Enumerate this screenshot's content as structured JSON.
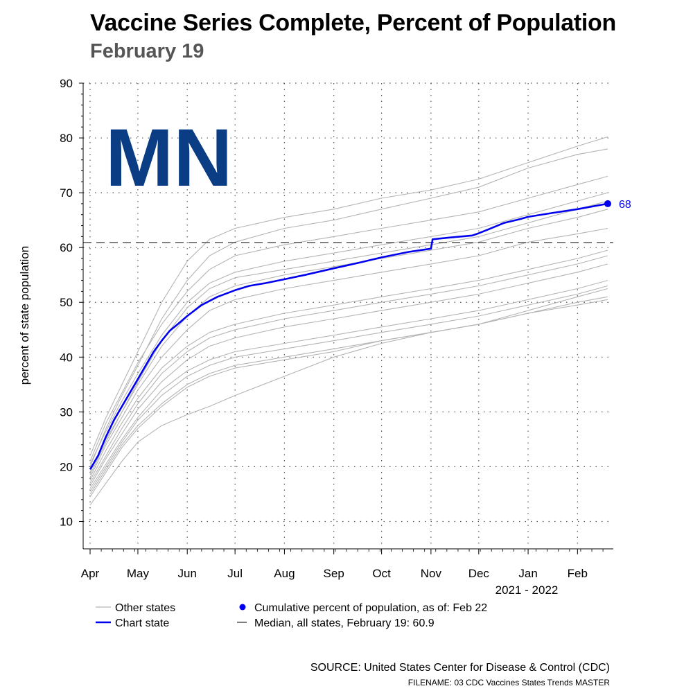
{
  "header": {
    "title": "Vaccine Series Complete, Percent of Population",
    "subtitle": "February 19"
  },
  "chart_data": {
    "type": "line",
    "title": "Vaccine Series Complete, Percent of Population",
    "subtitle": "February 19",
    "state_label": "MN",
    "ylabel": "percent of state population",
    "xlabel": "2021 - 2022",
    "ylim": [
      5,
      90
    ],
    "yticks": [
      10,
      20,
      30,
      40,
      50,
      60,
      70,
      80,
      90
    ],
    "xlim": [
      0,
      325
    ],
    "x_unit": "days since Apr 1, 2021",
    "xtick_days": [
      0,
      30,
      61,
      91,
      122,
      153,
      183,
      214,
      244,
      275,
      306
    ],
    "xtick_labels": [
      "Apr",
      "May",
      "Jun",
      "Jul",
      "Aug",
      "Sep",
      "Oct",
      "Nov",
      "Dec",
      "Jan",
      "Feb"
    ],
    "median": {
      "value": 60.9,
      "label": "Median, all states, February 19: 60.9"
    },
    "end_point": {
      "x": 325,
      "value": 68,
      "label": "68"
    },
    "series": [
      {
        "name": "Chart state (MN)",
        "color": "#0000ee",
        "x": [
          0,
          5,
          10,
          15,
          20,
          25,
          30,
          35,
          40,
          45,
          50,
          55,
          61,
          70,
          80,
          91,
          100,
          110,
          122,
          135,
          153,
          170,
          183,
          200,
          214,
          215,
          225,
          240,
          244,
          250,
          260,
          270,
          275,
          290,
          306,
          325
        ],
        "values": [
          19.5,
          22,
          25.5,
          28.5,
          31,
          33.5,
          36,
          38.5,
          41,
          43,
          44.8,
          46,
          47.5,
          49.5,
          51,
          52.2,
          53,
          53.5,
          54.2,
          55,
          56.2,
          57.3,
          58.2,
          59.2,
          59.8,
          61.5,
          61.8,
          62.2,
          62.6,
          63.3,
          64.5,
          65.2,
          65.6,
          66.3,
          67,
          68
        ]
      },
      {
        "name": "Other states",
        "color": "#b4b4b4",
        "x": [
          0,
          10,
          20,
          30,
          45,
          61,
          75,
          91,
          122,
          153,
          183,
          214,
          244,
          275,
          306,
          325
        ],
        "values": [
          22,
          29,
          35,
          41,
          50,
          57.5,
          61.5,
          63.5,
          65.5,
          67,
          69,
          70.5,
          72.5,
          75.5,
          78.5,
          80.2
        ]
      },
      {
        "name": "Other states",
        "color": "#b4b4b4",
        "x": [
          0,
          10,
          20,
          30,
          45,
          61,
          75,
          91,
          122,
          153,
          183,
          214,
          244,
          275,
          306,
          325
        ],
        "values": [
          20,
          27,
          33,
          38.5,
          47,
          54,
          58.5,
          61,
          63.5,
          65,
          67,
          69,
          71,
          74.5,
          77,
          78
        ]
      },
      {
        "name": "Other states",
        "color": "#b4b4b4",
        "x": [
          0,
          10,
          20,
          30,
          45,
          61,
          75,
          91,
          122,
          153,
          183,
          214,
          244,
          275,
          306,
          325
        ],
        "values": [
          21,
          28,
          33.5,
          39,
          46,
          52,
          56,
          58.5,
          60.5,
          62,
          63.5,
          65,
          66.5,
          69,
          71.5,
          73
        ]
      },
      {
        "name": "Other states",
        "color": "#b4b4b4",
        "x": [
          0,
          10,
          20,
          30,
          45,
          61,
          75,
          91,
          122,
          153,
          183,
          214,
          244,
          275,
          306,
          325
        ],
        "values": [
          20.5,
          26.5,
          32,
          37,
          44,
          50,
          53.5,
          55.5,
          57.5,
          59,
          60.5,
          62,
          63.5,
          66,
          68.5,
          70
        ]
      },
      {
        "name": "Other states",
        "color": "#b4b4b4",
        "x": [
          0,
          10,
          20,
          30,
          45,
          61,
          75,
          91,
          122,
          153,
          183,
          214,
          244,
          275,
          306,
          325
        ],
        "values": [
          19,
          25,
          30,
          35,
          42,
          47.5,
          51,
          53,
          55,
          56.5,
          58,
          59.5,
          61,
          63.5,
          65.5,
          67
        ]
      },
      {
        "name": "Other states",
        "color": "#b4b4b4",
        "x": [
          0,
          10,
          20,
          30,
          45,
          61,
          75,
          91,
          122,
          153,
          183,
          214,
          244,
          275,
          306,
          325
        ],
        "values": [
          18,
          24,
          29,
          34,
          40,
          45,
          48.5,
          50.5,
          52.5,
          54,
          55.5,
          57,
          58.5,
          61,
          62.5,
          63.5
        ]
      },
      {
        "name": "Other states",
        "color": "#b4b4b4",
        "x": [
          0,
          10,
          20,
          30,
          45,
          61,
          75,
          91,
          122,
          153,
          183,
          214,
          244,
          275,
          306,
          325
        ],
        "values": [
          17.5,
          23,
          28,
          32.5,
          38,
          42,
          44.5,
          46,
          48,
          49.5,
          51,
          52.5,
          54,
          56,
          58,
          59.5
        ]
      },
      {
        "name": "Other states",
        "color": "#b4b4b4",
        "x": [
          0,
          10,
          20,
          30,
          45,
          61,
          75,
          91,
          122,
          153,
          183,
          214,
          244,
          275,
          306,
          325
        ],
        "values": [
          16.5,
          21.5,
          26,
          30.5,
          35.5,
          39.5,
          42,
          43.5,
          45.5,
          47,
          48.5,
          50,
          51.5,
          53.5,
          55.5,
          57
        ]
      },
      {
        "name": "Other states",
        "color": "#b4b4b4",
        "x": [
          0,
          10,
          20,
          30,
          45,
          61,
          75,
          91,
          122,
          153,
          183,
          214,
          244,
          275,
          306,
          325
        ],
        "values": [
          16,
          20.5,
          25,
          29,
          34,
          37.5,
          39.5,
          41,
          42.5,
          44,
          45.5,
          47,
          48.5,
          50.5,
          52.5,
          54
        ]
      },
      {
        "name": "Other states",
        "color": "#b4b4b4",
        "x": [
          0,
          10,
          20,
          30,
          45,
          61,
          75,
          91,
          122,
          153,
          183,
          214,
          244,
          275,
          306,
          325
        ],
        "values": [
          15,
          19.5,
          24,
          27.5,
          31.5,
          35,
          37,
          38.5,
          40,
          41.5,
          43,
          44.5,
          46,
          48,
          49.5,
          50.5
        ]
      },
      {
        "name": "Other states",
        "color": "#b4b4b4",
        "x": [
          0,
          10,
          20,
          30,
          45,
          61,
          75,
          91,
          122,
          153,
          183,
          214,
          244,
          275,
          306,
          325
        ],
        "values": [
          13,
          17,
          21,
          24.5,
          27.5,
          29.5,
          31,
          33,
          36.5,
          40,
          42.5,
          44.5,
          46,
          48,
          50,
          51
        ]
      },
      {
        "name": "Other states",
        "color": "#b4b4b4",
        "x": [
          0,
          10,
          20,
          30,
          45,
          61,
          75,
          91,
          122,
          153,
          183,
          214,
          244,
          275,
          306,
          325
        ],
        "values": [
          14.5,
          19,
          23.5,
          27,
          31,
          34.5,
          36.5,
          38,
          39.5,
          41,
          43,
          44.5,
          46,
          48.5,
          51,
          52.5
        ]
      },
      {
        "name": "Other states",
        "color": "#b4b4b4",
        "x": [
          0,
          10,
          20,
          30,
          45,
          61,
          75,
          91,
          122,
          153,
          183,
          214,
          244,
          275,
          306,
          325
        ],
        "values": [
          18.5,
          24.5,
          30,
          35.5,
          43,
          49,
          52.5,
          54.5,
          56,
          57.5,
          59,
          60.5,
          62,
          64.5,
          67,
          68.5
        ]
      },
      {
        "name": "Other states",
        "color": "#b4b4b4",
        "x": [
          0,
          10,
          20,
          30,
          45,
          61,
          75,
          91,
          122,
          153,
          183,
          214,
          244,
          275,
          306,
          325
        ],
        "values": [
          17,
          22,
          27,
          31.5,
          37,
          41,
          43.5,
          45,
          47,
          48.5,
          50,
          51.5,
          53,
          55,
          57,
          58.5
        ]
      },
      {
        "name": "Other states",
        "color": "#b4b4b4",
        "x": [
          0,
          10,
          20,
          30,
          45,
          61,
          75,
          91,
          122,
          153,
          183,
          214,
          244,
          275,
          306,
          325
        ],
        "values": [
          15.5,
          20,
          24.5,
          28.5,
          33,
          36.5,
          38.5,
          40,
          41.5,
          43,
          44.5,
          46,
          47.5,
          49.5,
          51.5,
          53
        ]
      }
    ],
    "legend": [
      {
        "label": "Other states",
        "symbol": "gray-line"
      },
      {
        "label": "Chart state",
        "symbol": "blue-line"
      },
      {
        "label": "Cumulative percent of population, as of: Feb 22",
        "symbol": "blue-dot"
      },
      {
        "label": "Median, all states, February 19: 60.9",
        "symbol": "black-dash"
      }
    ]
  },
  "footer": {
    "source": "SOURCE: United States Center for Disease & Control (CDC)",
    "filename": "FILENAME: 03 CDC Vaccines States Trends MASTER"
  }
}
